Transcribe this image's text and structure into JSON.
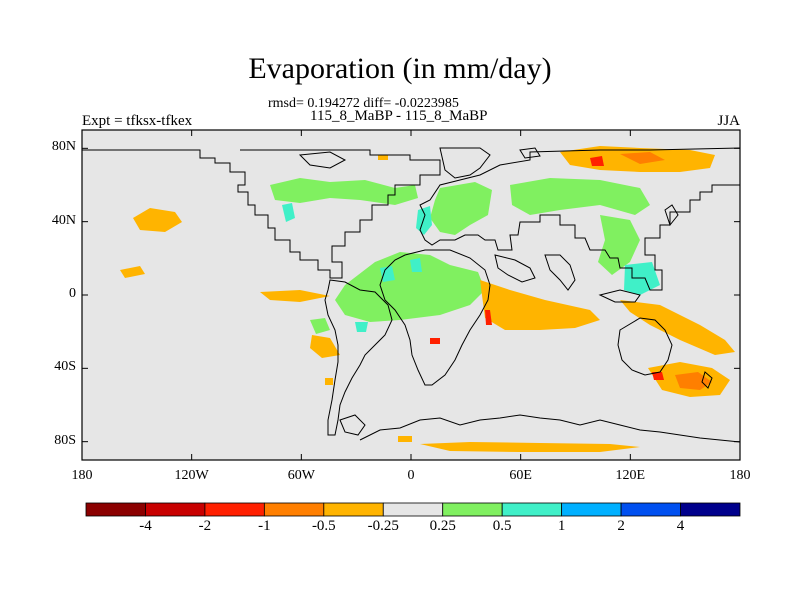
{
  "title": "Evaporation (in mm/day)",
  "stats_line": "rmsd= 0.194272 diff= -0.0223985",
  "comparison_line": "115_8_MaBP - 115_8_MaBP",
  "left_label": "Expt = tfksx-tfkex",
  "right_label": "JJA",
  "map": {
    "lon_range": [
      -180,
      180
    ],
    "lat_range": [
      -90,
      90
    ],
    "background_color": "#e6e6e6",
    "y_ticks": [
      {
        "lat": 80,
        "label": "80N"
      },
      {
        "lat": 40,
        "label": "40N"
      },
      {
        "lat": 0,
        "label": "0"
      },
      {
        "lat": -40,
        "label": "40S"
      },
      {
        "lat": -80,
        "label": "80S"
      }
    ],
    "x_ticks": [
      {
        "lon": -180,
        "label": "180"
      },
      {
        "lon": -120,
        "label": "120W"
      },
      {
        "lon": -60,
        "label": "60W"
      },
      {
        "lon": 0,
        "label": "0"
      },
      {
        "lon": 60,
        "label": "60E"
      },
      {
        "lon": 120,
        "label": "120E"
      },
      {
        "lon": 180,
        "label": "180"
      }
    ]
  },
  "colorbar": {
    "colors": [
      "#8b0000",
      "#c80000",
      "#ff2000",
      "#ff7f00",
      "#ffb400",
      "#e6e6e6",
      "#80f060",
      "#40f0c8",
      "#00b0ff",
      "#0050f0",
      "#00008c"
    ],
    "tick_labels": [
      "-4",
      "-2",
      "-1",
      "-0.5",
      "-0.25",
      "0.25",
      "0.5",
      "1",
      "2",
      "4"
    ]
  }
}
